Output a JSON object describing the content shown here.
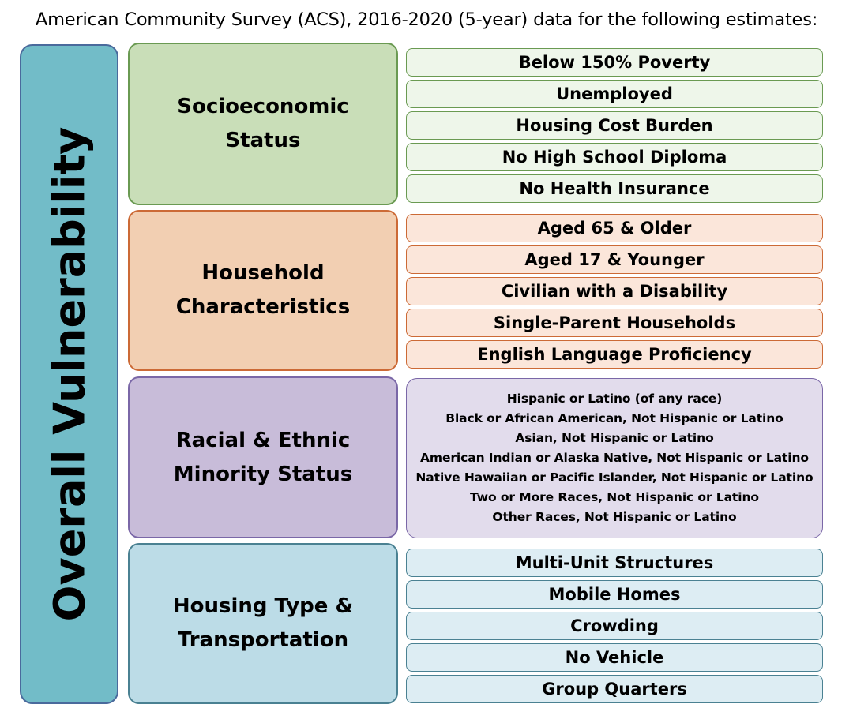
{
  "header": "American Community Survey (ACS), 2016-2020 (5-year) data for the following estimates:",
  "overall_label": "Overall Vulnerability",
  "colors": {
    "overall_fill": "#72bcc8",
    "overall_border": "#4a6a9c",
    "socio_fill": "#c9deb8",
    "socio_border": "#6a9a52",
    "socio_item_fill": "#eef6ea",
    "household_fill": "#f2cfb2",
    "household_border": "#cc6a36",
    "household_item_fill": "#fbe6da",
    "racial_fill": "#c8bcd9",
    "racial_border": "#7a67a7",
    "racial_item_fill": "#e2dcec",
    "housing_fill": "#bcdce7",
    "housing_border": "#4a8192",
    "housing_item_fill": "#ddedf3"
  },
  "themes": {
    "socioeconomic": {
      "title": "Socioeconomic\nStatus",
      "items": [
        "Below 150% Poverty",
        "Unemployed",
        "Housing Cost Burden",
        "No High School Diploma",
        "No Health Insurance"
      ]
    },
    "household": {
      "title": "Household\nCharacteristics",
      "items": [
        "Aged 65 & Older",
        "Aged 17 & Younger",
        "Civilian with a Disability",
        "Single-Parent Households",
        "English Language Proficiency"
      ]
    },
    "racial": {
      "title": "Racial & Ethnic\nMinority Status",
      "items": [
        "Hispanic or Latino (of any race)",
        "Black or African American, Not Hispanic or Latino",
        "Asian, Not Hispanic or Latino",
        "American Indian or Alaska Native, Not Hispanic or Latino",
        "Native Hawaiian or Pacific Islander, Not Hispanic or Latino",
        "Two or More Races, Not Hispanic or Latino",
        "Other Races, Not Hispanic or Latino"
      ]
    },
    "housing": {
      "title": "Housing Type &\nTransportation",
      "items": [
        "Multi-Unit Structures",
        "Mobile Homes",
        "Crowding",
        "No Vehicle",
        "Group Quarters"
      ]
    }
  }
}
